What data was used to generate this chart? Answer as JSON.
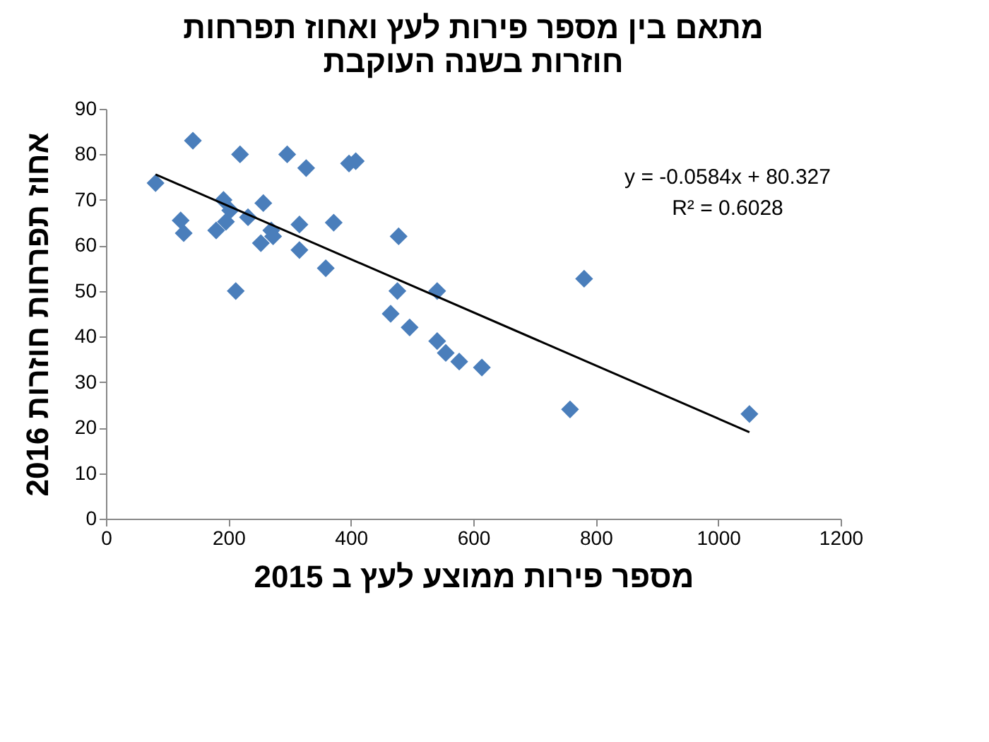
{
  "chart_data": {
    "type": "scatter",
    "title": "מתאם בין מספר פירות לעץ ואחוז תפרחות חוזרות בשנה העוקבת",
    "xlabel": "מספר פירות ממוצע לעץ ב 2015",
    "ylabel": "אחוז תפרחות חוזרות 2016",
    "annotations": [
      "y = -0.0584x + 80.327",
      "R² = 0.6028"
    ],
    "xlim": [
      0,
      1200
    ],
    "xticks": [
      0,
      200,
      400,
      600,
      800,
      1000,
      1200
    ],
    "ylim": [
      0,
      90
    ],
    "yticks": [
      0,
      10,
      20,
      30,
      40,
      50,
      60,
      70,
      80,
      90
    ],
    "grid": false,
    "marker": "diamond",
    "series": [
      {
        "color": "#4a7ebb",
        "x": [
          81,
          142,
          219,
          122,
          127,
          212,
          192,
          203,
          180,
          196,
          232,
          257,
          253,
          270,
          273,
          296,
          327,
          316,
          316,
          372,
          359,
          397,
          408,
          478,
          476,
          465,
          496,
          541,
          541,
          555,
          577,
          614,
          781,
          758,
          1051
        ],
        "values": [
          73.7,
          83,
          80,
          65.5,
          62.7,
          50,
          70,
          67.7,
          63.3,
          65.2,
          66.2,
          69.3,
          60.5,
          63.3,
          62,
          80,
          77,
          64.6,
          59,
          65,
          55,
          78,
          78.5,
          62,
          50,
          45,
          42,
          50,
          39,
          36.4,
          34.5,
          33.2,
          52.7,
          24,
          23
        ]
      },
      {
        "type": "line",
        "color": "#000000",
        "line_style": "solid",
        "marker": "none",
        "x": [
          81,
          1051
        ],
        "values": [
          75.6,
          19
        ]
      }
    ]
  }
}
